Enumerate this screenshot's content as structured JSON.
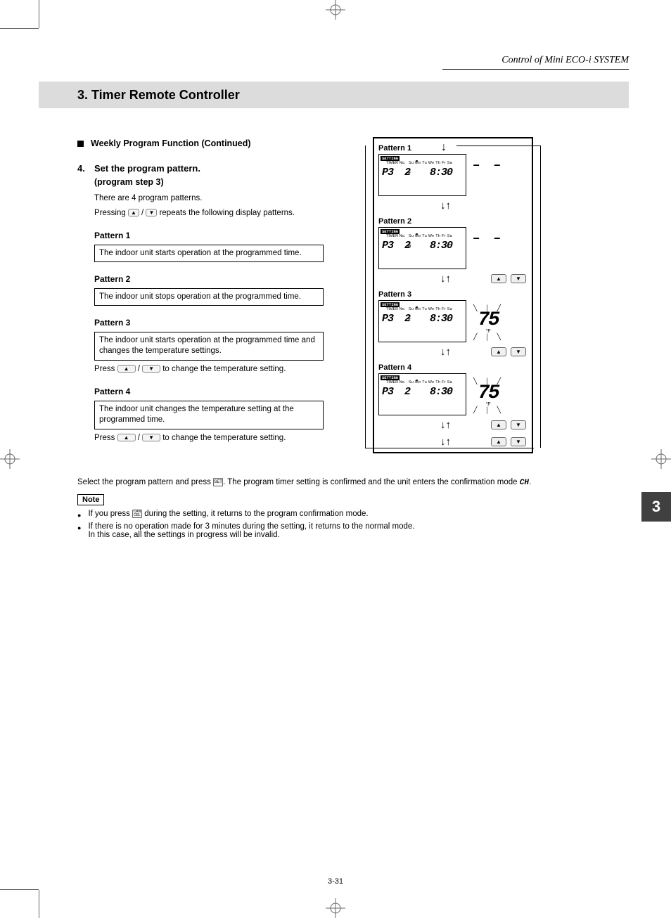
{
  "header": {
    "breadcrumb": "Control of Mini ECO-i SYSTEM",
    "title": "3. Timer Remote Controller"
  },
  "section": {
    "heading": "Weekly Program Function (Continued)",
    "step_num": "4.",
    "step_title": "Set the program pattern.",
    "step_sub": "(program step 3)",
    "intro1": "There are 4 program patterns.",
    "intro2a": "Pressing ",
    "intro2b": " / ",
    "intro2c": " repeats the following display patterns."
  },
  "patterns": [
    {
      "label": "Pattern 1",
      "text": "The indoor unit starts operation at the programmed time."
    },
    {
      "label": "Pattern 2",
      "text": "The indoor unit stops operation at the programmed time."
    },
    {
      "label": "Pattern 3",
      "text": "The indoor unit starts operation at the programmed time and changes the temperature settings."
    },
    {
      "label": "Pattern 4",
      "text": "The indoor unit changes the temperature setting at the programmed time."
    }
  ],
  "temp_change_note_a": "Press ",
  "temp_change_note_b": " / ",
  "temp_change_note_c": " to change the temperature setting.",
  "controller": {
    "setting_badge": "SETTING",
    "timer_label": "TIMER No.",
    "days": "Su Mo Tu We Th Fr Sa",
    "p_code": "P3",
    "sub_code": "2",
    "time": "8:30",
    "temp_dashes": "– –",
    "temp_value": "75",
    "temp_unit": "°F",
    "rows": [
      {
        "label": "Pattern 1",
        "show_temp": false,
        "show_dashes": true,
        "icon": "☀"
      },
      {
        "label": "Pattern 2",
        "show_temp": false,
        "show_dashes": true,
        "icon": "❄"
      },
      {
        "label": "Pattern 3",
        "show_temp": true,
        "show_dashes": false,
        "icon": "☀"
      },
      {
        "label": "Pattern 4",
        "show_temp": true,
        "show_dashes": false,
        "icon": ""
      }
    ]
  },
  "confirm_text_a": "Select the program pattern and press ",
  "confirm_text_b": ". The program timer setting is confirmed and the unit enters the confirmation mode ",
  "confirm_code": "CH",
  "note_label": "Note",
  "notes": [
    {
      "a": "If you press ",
      "btn": "CAN CEL",
      "b": " during the setting, it returns to the program confirmation mode."
    },
    {
      "a": "If there is no operation made for 3 minutes during the setting, it returns to the normal mode.",
      "b2": "In this case, all the settings in progress will be invalid."
    }
  ],
  "side_tab": "3",
  "page_number": "3-31",
  "colors": {
    "title_bg": "#dcdcdc",
    "tab_bg": "#404040",
    "text": "#000000"
  }
}
